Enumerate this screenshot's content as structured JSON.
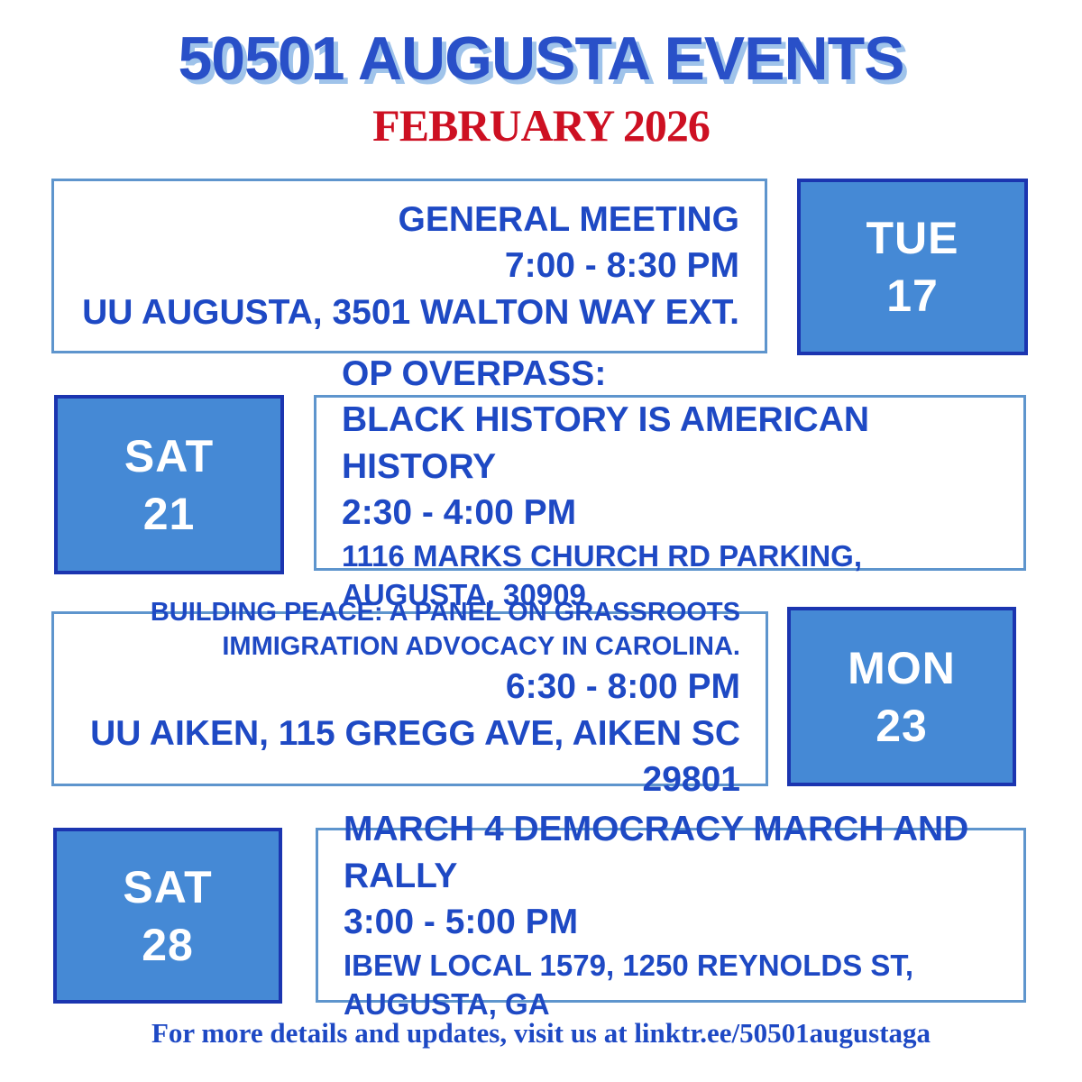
{
  "header": {
    "title": "50501 AUGUSTA EVENTS",
    "subtitle": "FEBRUARY 2026"
  },
  "events": [
    {
      "day": "TUE",
      "date": "17",
      "title": "GENERAL MEETING",
      "time": "7:00 - 8:30 PM",
      "location": "UU AUGUSTA, 3501 WALTON WAY EXT."
    },
    {
      "day": "SAT",
      "date": "21",
      "title": "OP OVERPASS:\nBLACK HISTORY IS AMERICAN HISTORY",
      "time": "2:30 - 4:00 PM",
      "location": "1116 MARKS CHURCH RD PARKING, AUGUSTA, 30909"
    },
    {
      "day": "MON",
      "date": "23",
      "title": "BUILDING PEACE: A PANEL ON GRASSROOTS IMMIGRATION ADVOCACY IN CAROLINA.",
      "time": "6:30 - 8:00 PM",
      "location": "UU AIKEN, 115 GREGG AVE, AIKEN SC 29801"
    },
    {
      "day": "SAT",
      "date": "28",
      "title": "MARCH 4 DEMOCRACY MARCH AND RALLY",
      "time": "3:00 - 5:00 PM",
      "location": "IBEW LOCAL 1579, 1250 REYNOLDS ST, AUGUSTA, GA"
    }
  ],
  "footer": {
    "text": "For more details and updates, visit us at linktr.ee/50501augustaga"
  },
  "colors": {
    "title_blue": "#2950c8",
    "title_shadow_blue": "#9fc3ea",
    "subtitle_red": "#cd1022",
    "event_text_blue": "#1e49c4",
    "day_box_fill": "#4589d5",
    "day_box_border": "#1b35b0",
    "event_box_border": "#5e95cd",
    "background": "#ffffff"
  }
}
